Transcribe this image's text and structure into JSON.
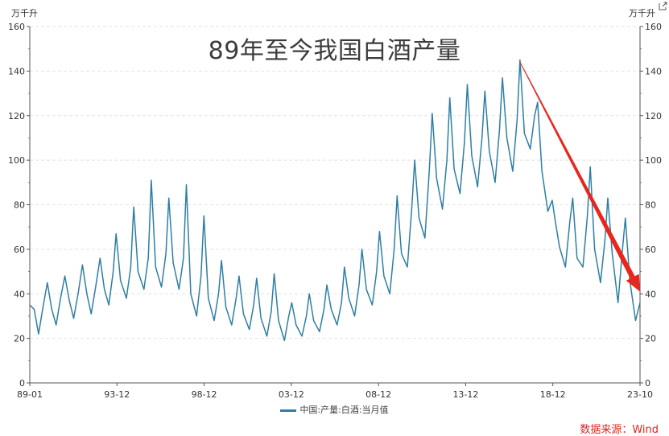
{
  "units": {
    "left": "万千升",
    "right": "万千升"
  },
  "toolbar": {
    "export_icon": "export-icon"
  },
  "source": "数据来源：Wind",
  "chart_data": {
    "type": "line",
    "title": "89年至今我国白酒产量",
    "xlabel": "",
    "ylabel": "万千升",
    "x_ticks": [
      "89-01",
      "93-12",
      "98-12",
      "03-12",
      "08-12",
      "13-12",
      "18-12",
      "23-10"
    ],
    "ylim": [
      0,
      160
    ],
    "y_ticks": [
      0,
      20,
      40,
      60,
      80,
      100,
      120,
      140,
      160
    ],
    "grid": true,
    "legend_position": "bottom",
    "dual_axis": true,
    "series": [
      {
        "name": "中国:产量:白酒:当月值",
        "color": "#2e7ea6",
        "x_start": "1989-01",
        "x_end": "2023-10",
        "frequency": "monthly (anchor points)",
        "anchors": [
          [
            "1989-01",
            35
          ],
          [
            "1989-04",
            33
          ],
          [
            "1989-07",
            22
          ],
          [
            "1989-10",
            34
          ],
          [
            "1990-01",
            45
          ],
          [
            "1990-04",
            33
          ],
          [
            "1990-07",
            26
          ],
          [
            "1990-10",
            38
          ],
          [
            "1991-01",
            48
          ],
          [
            "1991-04",
            37
          ],
          [
            "1991-07",
            29
          ],
          [
            "1991-10",
            40
          ],
          [
            "1992-01",
            53
          ],
          [
            "1992-04",
            40
          ],
          [
            "1992-07",
            31
          ],
          [
            "1992-10",
            43
          ],
          [
            "1993-01",
            56
          ],
          [
            "1993-04",
            42
          ],
          [
            "1993-07",
            35
          ],
          [
            "1993-10",
            50
          ],
          [
            "1993-12",
            67
          ],
          [
            "1994-03",
            46
          ],
          [
            "1994-07",
            38
          ],
          [
            "1994-10",
            52
          ],
          [
            "1994-12",
            79
          ],
          [
            "1995-03",
            50
          ],
          [
            "1995-07",
            42
          ],
          [
            "1995-10",
            56
          ],
          [
            "1995-12",
            91
          ],
          [
            "1996-03",
            52
          ],
          [
            "1996-07",
            43
          ],
          [
            "1996-10",
            58
          ],
          [
            "1996-12",
            83
          ],
          [
            "1997-03",
            54
          ],
          [
            "1997-07",
            42
          ],
          [
            "1997-10",
            56
          ],
          [
            "1997-12",
            89
          ],
          [
            "1998-03",
            40
          ],
          [
            "1998-07",
            30
          ],
          [
            "1998-10",
            48
          ],
          [
            "1998-12",
            75
          ],
          [
            "1999-03",
            38
          ],
          [
            "1999-07",
            28
          ],
          [
            "1999-10",
            40
          ],
          [
            "1999-12",
            55
          ],
          [
            "2000-03",
            34
          ],
          [
            "2000-07",
            26
          ],
          [
            "2000-10",
            38
          ],
          [
            "2000-12",
            48
          ],
          [
            "2001-03",
            31
          ],
          [
            "2001-07",
            24
          ],
          [
            "2001-10",
            35
          ],
          [
            "2001-12",
            47
          ],
          [
            "2002-03",
            29
          ],
          [
            "2002-07",
            21
          ],
          [
            "2002-10",
            32
          ],
          [
            "2002-12",
            49
          ],
          [
            "2003-03",
            28
          ],
          [
            "2003-07",
            19
          ],
          [
            "2003-10",
            30
          ],
          [
            "2003-12",
            36
          ],
          [
            "2004-03",
            26
          ],
          [
            "2004-07",
            21
          ],
          [
            "2004-10",
            30
          ],
          [
            "2004-12",
            40
          ],
          [
            "2005-03",
            28
          ],
          [
            "2005-07",
            23
          ],
          [
            "2005-10",
            33
          ],
          [
            "2005-12",
            44
          ],
          [
            "2006-03",
            33
          ],
          [
            "2006-07",
            26
          ],
          [
            "2006-10",
            36
          ],
          [
            "2006-12",
            52
          ],
          [
            "2007-03",
            38
          ],
          [
            "2007-07",
            30
          ],
          [
            "2007-10",
            44
          ],
          [
            "2007-12",
            60
          ],
          [
            "2008-03",
            42
          ],
          [
            "2008-07",
            35
          ],
          [
            "2008-10",
            50
          ],
          [
            "2008-12",
            68
          ],
          [
            "2009-03",
            48
          ],
          [
            "2009-07",
            40
          ],
          [
            "2009-10",
            60
          ],
          [
            "2009-12",
            84
          ],
          [
            "2010-03",
            58
          ],
          [
            "2010-07",
            52
          ],
          [
            "2010-10",
            78
          ],
          [
            "2010-12",
            100
          ],
          [
            "2011-03",
            74
          ],
          [
            "2011-07",
            65
          ],
          [
            "2011-10",
            95
          ],
          [
            "2011-12",
            121
          ],
          [
            "2012-03",
            92
          ],
          [
            "2012-07",
            78
          ],
          [
            "2012-10",
            100
          ],
          [
            "2012-12",
            128
          ],
          [
            "2013-03",
            96
          ],
          [
            "2013-07",
            85
          ],
          [
            "2013-10",
            108
          ],
          [
            "2013-12",
            134
          ],
          [
            "2014-03",
            102
          ],
          [
            "2014-07",
            88
          ],
          [
            "2014-10",
            110
          ],
          [
            "2014-12",
            131
          ],
          [
            "2015-03",
            104
          ],
          [
            "2015-07",
            90
          ],
          [
            "2015-10",
            114
          ],
          [
            "2015-12",
            137
          ],
          [
            "2016-03",
            110
          ],
          [
            "2016-07",
            95
          ],
          [
            "2016-10",
            118
          ],
          [
            "2016-12",
            145
          ],
          [
            "2017-03",
            112
          ],
          [
            "2017-07",
            105
          ],
          [
            "2017-10",
            120
          ],
          [
            "2017-12",
            126
          ],
          [
            "2018-03",
            95
          ],
          [
            "2018-07",
            77
          ],
          [
            "2018-10",
            82
          ],
          [
            "2018-12",
            73
          ],
          [
            "2019-03",
            61
          ],
          [
            "2019-07",
            52
          ],
          [
            "2019-10",
            72
          ],
          [
            "2019-12",
            83
          ],
          [
            "2020-03",
            56
          ],
          [
            "2020-07",
            52
          ],
          [
            "2020-10",
            75
          ],
          [
            "2020-12",
            97
          ],
          [
            "2021-03",
            60
          ],
          [
            "2021-07",
            45
          ],
          [
            "2021-10",
            64
          ],
          [
            "2021-12",
            83
          ],
          [
            "2022-03",
            58
          ],
          [
            "2022-07",
            36
          ],
          [
            "2022-10",
            60
          ],
          [
            "2022-12",
            74
          ],
          [
            "2023-03",
            46
          ],
          [
            "2023-07",
            28
          ],
          [
            "2023-10",
            36
          ]
        ]
      }
    ],
    "annotation": {
      "type": "arrow",
      "color": "#e8261c",
      "from": [
        "2016-12",
        144
      ],
      "to": [
        "2023-10",
        41
      ]
    }
  }
}
